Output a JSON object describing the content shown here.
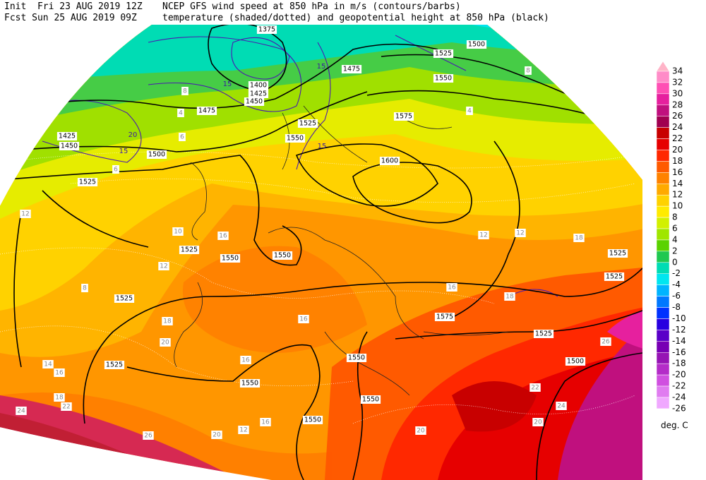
{
  "header": {
    "init": "Init  Fri 23 AUG 2019 12Z",
    "title_1": "NCEP GFS wind speed at 850 hPa in m/s (contours/barbs)",
    "fcst": "Fcst Sun 25 AUG 2019 09Z",
    "title_2": "temperature (shaded/dotted) and geopotential height at 850 hPa (black)"
  },
  "colorbar": {
    "labels": [
      34,
      32,
      30,
      28,
      26,
      24,
      22,
      20,
      18,
      16,
      14,
      12,
      10,
      8,
      6,
      4,
      2,
      0,
      -2,
      -4,
      -6,
      -8,
      -10,
      -12,
      -14,
      -16,
      -18,
      -20,
      -22,
      -24,
      -26
    ],
    "colors": [
      "#ffb4c8",
      "#ff8cc8",
      "#ff50b4",
      "#e6209e",
      "#c0107e",
      "#a00050",
      "#c80000",
      "#e60000",
      "#ff2800",
      "#ff5a00",
      "#ff8200",
      "#ffaa00",
      "#ffd200",
      "#ffeb00",
      "#d2f000",
      "#a0e600",
      "#5ad200",
      "#20c850",
      "#00dcb4",
      "#00e6f0",
      "#00b4ff",
      "#0078ff",
      "#0032ff",
      "#2800e0",
      "#5a00c8",
      "#7800b4",
      "#9614b4",
      "#b42cc8",
      "#d050e0",
      "#e07cf0",
      "#f0a8ff"
    ],
    "unit": "deg. C"
  },
  "geopotential_labels": [
    1375,
    1475,
    1525,
    1500,
    1550,
    1400,
    1425,
    1450,
    1475,
    1525,
    1550,
    1575,
    1600,
    1500,
    1525,
    1425,
    1450,
    1525,
    1550,
    1550,
    1525,
    1525,
    1550,
    1550,
    1550,
    1550,
    1575,
    1525,
    1500,
    1525,
    1525
  ],
  "temperature_labels": [
    12,
    10,
    16,
    12,
    8,
    16,
    20,
    18,
    16,
    16,
    20,
    22,
    24,
    20,
    26,
    18,
    12,
    12,
    18,
    16,
    24,
    22,
    26,
    20,
    12,
    14,
    16,
    18,
    8,
    4,
    6,
    4,
    8,
    6
  ],
  "wind_labels": [
    15,
    15,
    15,
    15,
    20
  ]
}
